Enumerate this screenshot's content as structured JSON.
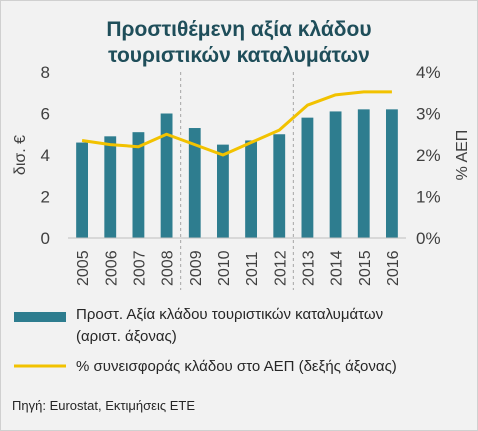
{
  "title_line1": "Προστιθέμενη αξία κλάδου",
  "title_line2": "τουριστικών καταλυμάτων",
  "source": "Πηγή: Eurostat, Εκτιμήσεις ΕΤΕ",
  "legend": {
    "bar_label_1": "Προστ. Αξία κλάδου τουριστικών καταλυμάτων",
    "bar_label_2": "(αριστ. άξονας)",
    "line_label": "% συνεισφοράς κλάδου στο ΑΕΠ (δεξής άξονας)"
  },
  "colors": {
    "bar": "#2e7d8f",
    "line": "#f2c200",
    "title": "#1f4e5a"
  },
  "chart_data": {
    "type": "bar",
    "categories": [
      "2005",
      "2006",
      "2007",
      "2008",
      "2009",
      "2010",
      "2011",
      "2012",
      "2013",
      "2014",
      "2015",
      "2016"
    ],
    "series": [
      {
        "name": "Προστ. Αξία κλάδου τουριστικών καταλυμάτων (αριστ. άξονας)",
        "type": "bar",
        "axis": "left",
        "values": [
          4.6,
          4.9,
          5.1,
          6.0,
          5.3,
          4.5,
          4.7,
          5.0,
          5.8,
          6.1,
          6.2,
          6.2
        ]
      },
      {
        "name": "% συνεισφοράς κλάδου στο ΑΕΠ (δεξής άξονας)",
        "type": "line",
        "axis": "right",
        "values": [
          2.35,
          2.25,
          2.2,
          2.5,
          2.25,
          2.0,
          2.3,
          2.6,
          3.2,
          3.45,
          3.52,
          3.52
        ]
      }
    ],
    "ylabel": "δισ. €",
    "y2label": "% ΑΕΠ",
    "ylim": [
      0,
      8
    ],
    "y2lim": [
      0,
      4
    ],
    "yticks": [
      "0",
      "2",
      "4",
      "6",
      "8"
    ],
    "y2ticks": [
      "0%",
      "1%",
      "2%",
      "3%",
      "4%"
    ],
    "separators_after": [
      "2008",
      "2012"
    ],
    "grid": false,
    "legend_position": "bottom"
  }
}
